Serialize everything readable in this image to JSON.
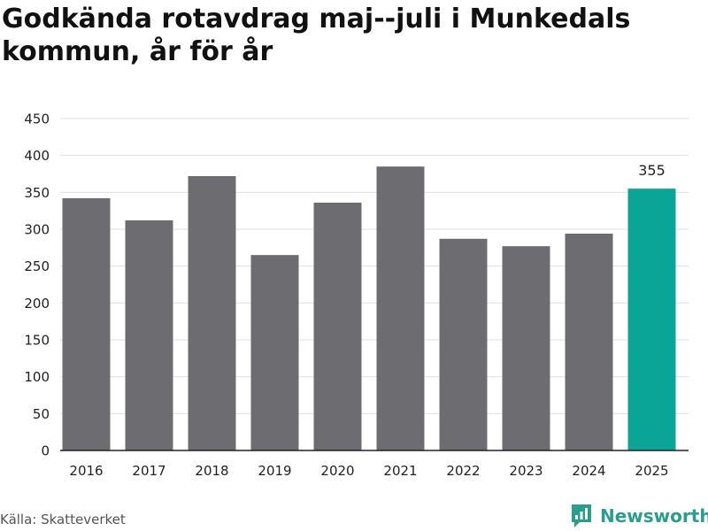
{
  "title": "Godkända rotavdrag maj--juli i Munkedals kommun, år för år",
  "source": "Källa: Skatteverket",
  "brand": "Newsworthy",
  "colors": {
    "bar": "#6d6c71",
    "highlight": "#0aa596",
    "grid": "#e0e0e0",
    "brand": "#2a9d8f"
  },
  "chart_data": {
    "type": "bar",
    "title": "Godkända rotavdrag maj--juli i Munkedals kommun, år för år",
    "categories": [
      "2016",
      "2017",
      "2018",
      "2019",
      "2020",
      "2021",
      "2022",
      "2023",
      "2024",
      "2025"
    ],
    "values": [
      342,
      312,
      372,
      265,
      336,
      385,
      287,
      277,
      294,
      355
    ],
    "highlight_index": 9,
    "data_labels": [
      {
        "index": 9,
        "text": "355"
      }
    ],
    "ylim": [
      0,
      450
    ],
    "yticks": [
      0,
      50,
      100,
      150,
      200,
      250,
      300,
      350,
      400,
      450
    ],
    "xlabel": "",
    "ylabel": "",
    "grid": true,
    "legend": "none"
  }
}
